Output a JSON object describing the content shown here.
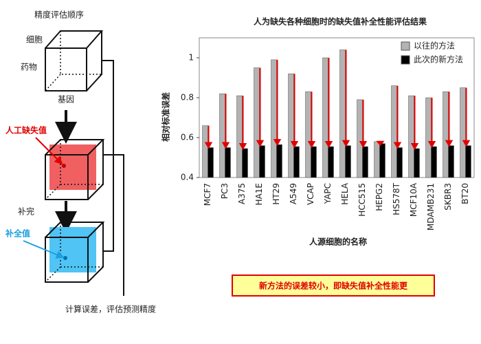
{
  "diagram": {
    "heading": "精度评估顺序",
    "axis_cell": "细胞",
    "axis_drug": "药物",
    "axis_gene": "基因",
    "missing_label": "人工缺失值",
    "step_label": "补完",
    "imputed_label": "补全值",
    "result_label": "计算误差，评估预测精度"
  },
  "note": "新方法的误差较小，即缺失值补全性能更",
  "chart_data": {
    "type": "bar",
    "title": "人为缺失各种细胞时的缺失值补全性能评估结果",
    "x_label": "人源细胞的名称",
    "y_label": "相对标准误差",
    "categories": [
      "MCF7",
      "PC3",
      "A375",
      "HA1E",
      "HT29",
      "A549",
      "VCAP",
      "YAPC",
      "HELA",
      "HCC515",
      "HEPG2",
      "HS578T",
      "MCF10A",
      "MDAMB231",
      "SKBR3",
      "BT20"
    ],
    "series": [
      {
        "name": "以往的方法",
        "color": "#b3b3b3",
        "values": [
          0.66,
          0.82,
          0.81,
          0.95,
          0.99,
          0.92,
          0.83,
          1.0,
          1.04,
          0.79,
          0.58,
          0.86,
          0.81,
          0.8,
          0.83,
          0.85
        ]
      },
      {
        "name": "此次的新方法",
        "color": "#000000",
        "values": [
          0.55,
          0.55,
          0.545,
          0.56,
          0.565,
          0.555,
          0.555,
          0.555,
          0.56,
          0.555,
          0.57,
          0.55,
          0.545,
          0.555,
          0.56,
          0.56
        ]
      }
    ],
    "arrow_color": "#e00000",
    "ylim": [
      0.4,
      1.1
    ],
    "yticks": [
      0.4,
      0.6,
      0.8,
      1
    ],
    "legend": "upper right"
  }
}
